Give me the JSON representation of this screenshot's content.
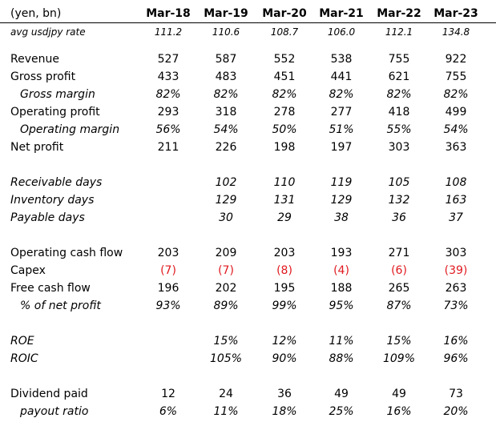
{
  "header": {
    "unit_label": "(yen, bn)",
    "years": [
      "Mar-18",
      "Mar-19",
      "Mar-20",
      "Mar-21",
      "Mar-22",
      "Mar-23"
    ]
  },
  "fx": {
    "label": "avg usdjpy rate",
    "values": [
      "111.2",
      "110.6",
      "108.7",
      "106.0",
      "112.1",
      "134.8"
    ]
  },
  "income": [
    {
      "label": "Revenue",
      "values": [
        "527",
        "587",
        "552",
        "538",
        "755",
        "922"
      ]
    },
    {
      "label": "Gross profit",
      "values": [
        "433",
        "483",
        "451",
        "441",
        "621",
        "755"
      ]
    },
    {
      "label": "Gross margin",
      "values": [
        "82%",
        "82%",
        "82%",
        "82%",
        "82%",
        "82%"
      ]
    },
    {
      "label": "Operating profit",
      "values": [
        "293",
        "318",
        "278",
        "277",
        "418",
        "499"
      ]
    },
    {
      "label": "Operating margin",
      "values": [
        "56%",
        "54%",
        "50%",
        "51%",
        "55%",
        "54%"
      ]
    },
    {
      "label": "Net profit",
      "values": [
        "211",
        "226",
        "198",
        "197",
        "303",
        "363"
      ]
    }
  ],
  "working_capital": [
    {
      "label": "Receivable days",
      "values": [
        "",
        "102",
        "110",
        "119",
        "105",
        "108"
      ]
    },
    {
      "label": "Inventory days",
      "values": [
        "",
        "129",
        "131",
        "129",
        "132",
        "163"
      ]
    },
    {
      "label": "Payable days",
      "values": [
        "",
        "30",
        "29",
        "38",
        "36",
        "37"
      ]
    }
  ],
  "cash_flow": [
    {
      "label": "Operating cash flow",
      "values": [
        "203",
        "209",
        "203",
        "193",
        "271",
        "303"
      ]
    },
    {
      "label": "Capex",
      "values": [
        "(7)",
        "(7)",
        "(8)",
        "(4)",
        "(6)",
        "(39)"
      ]
    },
    {
      "label": "Free cash flow",
      "values": [
        "196",
        "202",
        "195",
        "188",
        "265",
        "263"
      ]
    },
    {
      "label": "% of net profit",
      "values": [
        "93%",
        "89%",
        "99%",
        "95%",
        "87%",
        "73%"
      ]
    }
  ],
  "returns": [
    {
      "label": "ROE",
      "values": [
        "",
        "15%",
        "12%",
        "11%",
        "15%",
        "16%"
      ]
    },
    {
      "label": "ROIC",
      "values": [
        "",
        "105%",
        "90%",
        "88%",
        "109%",
        "96%"
      ]
    }
  ],
  "dividends": [
    {
      "label": "Dividend paid",
      "values": [
        "12",
        "24",
        "36",
        "49",
        "49",
        "73"
      ]
    },
    {
      "label": "payout ratio",
      "values": [
        "6%",
        "11%",
        "18%",
        "25%",
        "16%",
        "20%"
      ]
    }
  ],
  "colors": {
    "negative": "#e0191f",
    "text": "#000000",
    "background": "#ffffff"
  }
}
